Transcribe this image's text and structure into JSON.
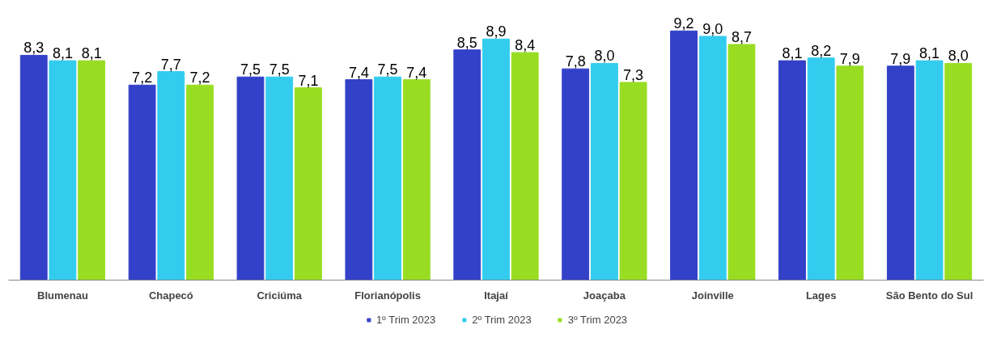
{
  "chart_data": {
    "type": "bar",
    "categories": [
      "Blumenau",
      "Chapecó",
      "Criciúma",
      "Florianópolis",
      "Itajaí",
      "Joaçaba",
      "Joinville",
      "Lages",
      "São Bento do Sul"
    ],
    "series": [
      {
        "name": "1º Trim 2023",
        "color": "#3340c8",
        "values": [
          8.3,
          7.2,
          7.5,
          7.4,
          8.5,
          7.8,
          9.2,
          8.1,
          7.9
        ],
        "value_labels": [
          "8,3",
          "7,2",
          "7,5",
          "7,4",
          "8,5",
          "7,8",
          "9,2",
          "8,1",
          "7,9"
        ]
      },
      {
        "name": "2º Trim 2023",
        "color": "#33ccee",
        "values": [
          8.1,
          7.7,
          7.5,
          7.5,
          8.9,
          8.0,
          9.0,
          8.2,
          8.1
        ],
        "value_labels": [
          "8,1",
          "7,7",
          "7,5",
          "7,5",
          "8,9",
          "8,0",
          "9,0",
          "8,2",
          "8,1"
        ]
      },
      {
        "name": "3º Trim 2023",
        "color": "#99dd22",
        "values": [
          8.1,
          7.2,
          7.1,
          7.4,
          8.4,
          7.3,
          8.7,
          7.9,
          8.0
        ],
        "value_labels": [
          "8,1",
          "7,2",
          "7,1",
          "7,4",
          "8,4",
          "7,3",
          "8,7",
          "7,9",
          "8,0"
        ]
      }
    ],
    "tick_labels": "x",
    "grid": false,
    "legend": "bottom"
  }
}
